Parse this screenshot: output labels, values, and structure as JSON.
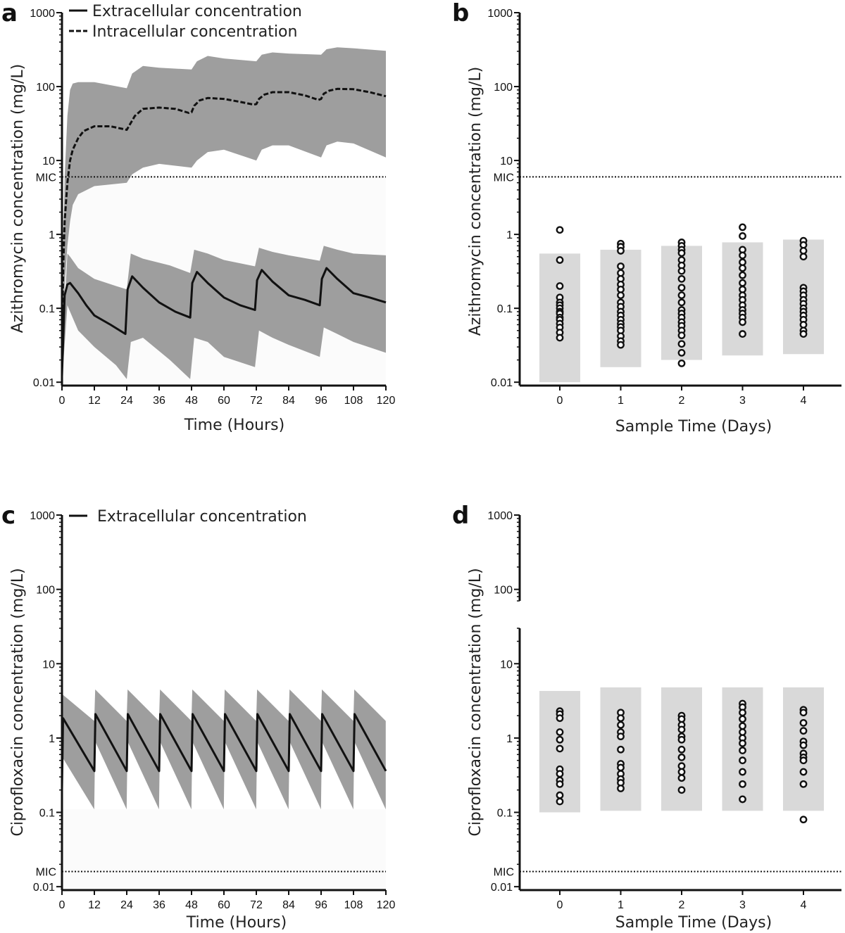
{
  "chart_data": [
    {
      "panel": "a",
      "type": "line",
      "xlabel": "Time (Hours)",
      "ylabel": "Azithromycin concentration (mg/L)",
      "xlim": [
        0,
        120
      ],
      "xticks": [
        0,
        12,
        24,
        36,
        48,
        60,
        72,
        84,
        96,
        108,
        120
      ],
      "ylim": [
        0.009,
        1000
      ],
      "yscale": "log",
      "yticks": [
        0.01,
        0.1,
        1,
        10,
        100,
        1000
      ],
      "ytick_labels": [
        "0.01",
        "0.1",
        "1",
        "10",
        "100",
        "1000"
      ],
      "mic": {
        "label": "MIC",
        "value": 6
      },
      "legend": {
        "position": "top-left",
        "entries": [
          "Extracellular concentration",
          "Intracellular concentration"
        ]
      },
      "series": [
        {
          "name": "Extracellular concentration",
          "style": "solid",
          "color": "#111111",
          "x": [
            0,
            1,
            2,
            3,
            6,
            9,
            12,
            18,
            23.5,
            24.3,
            26,
            30,
            36,
            42,
            47.5,
            48.3,
            50,
            54,
            60,
            66,
            71.5,
            72.3,
            74,
            78,
            84,
            90,
            95.5,
            96.3,
            98,
            102,
            108,
            114,
            120
          ],
          "y": [
            0.012,
            0.15,
            0.21,
            0.22,
            0.16,
            0.11,
            0.08,
            0.06,
            0.045,
            0.18,
            0.27,
            0.19,
            0.12,
            0.09,
            0.075,
            0.22,
            0.31,
            0.22,
            0.14,
            0.11,
            0.095,
            0.24,
            0.33,
            0.23,
            0.15,
            0.13,
            0.11,
            0.25,
            0.35,
            0.25,
            0.16,
            0.14,
            0.12
          ]
        },
        {
          "name": "Intracellular concentration",
          "style": "dashed",
          "color": "#111111",
          "x": [
            0,
            0.5,
            1,
            2,
            3,
            4,
            6,
            8,
            12,
            18,
            24,
            25,
            27,
            30,
            36,
            42,
            47,
            48,
            49,
            51,
            54,
            60,
            66,
            71,
            72,
            73,
            75,
            78,
            84,
            90,
            95,
            96,
            97,
            99,
            102,
            108,
            114,
            120
          ],
          "y": [
            0.04,
            0.4,
            1.5,
            5,
            10,
            14,
            20,
            25,
            29,
            29,
            26,
            30,
            40,
            50,
            52,
            50,
            44,
            45,
            55,
            65,
            70,
            68,
            62,
            57,
            58,
            68,
            78,
            84,
            84,
            76,
            66,
            68,
            80,
            88,
            93,
            92,
            84,
            74
          ]
        }
      ],
      "bands": [
        {
          "label": "extracellular range",
          "x": [
            0,
            2,
            3,
            6,
            12,
            20,
            24,
            25.5,
            30,
            40,
            47.5,
            49,
            54,
            60,
            71.5,
            73,
            78,
            84,
            95.5,
            97,
            102,
            108,
            120
          ],
          "upper": [
            0.02,
            0.55,
            0.5,
            0.35,
            0.25,
            0.2,
            0.18,
            0.55,
            0.47,
            0.38,
            0.3,
            0.62,
            0.55,
            0.45,
            0.37,
            0.66,
            0.58,
            0.52,
            0.44,
            0.7,
            0.62,
            0.55,
            0.52
          ],
          "lower": [
            0.01,
            0.11,
            0.09,
            0.05,
            0.03,
            0.017,
            0.011,
            0.035,
            0.04,
            0.02,
            0.011,
            0.04,
            0.035,
            0.022,
            0.016,
            0.05,
            0.04,
            0.032,
            0.022,
            0.055,
            0.045,
            0.035,
            0.025
          ]
        },
        {
          "label": "intracellular range",
          "x": [
            0,
            1,
            2,
            3,
            4,
            6,
            12,
            24,
            26,
            30,
            36,
            48,
            50,
            54,
            60,
            72,
            74,
            78,
            84,
            96,
            98,
            102,
            108,
            120
          ],
          "upper": [
            0.1,
            6,
            40,
            90,
            110,
            115,
            115,
            95,
            150,
            190,
            180,
            170,
            220,
            260,
            240,
            220,
            270,
            290,
            280,
            270,
            320,
            340,
            330,
            305
          ],
          "lower": [
            0.03,
            0.2,
            0.7,
            1.5,
            2.5,
            3.5,
            4.5,
            5,
            6.5,
            8,
            9,
            8,
            10,
            13,
            14,
            10,
            14,
            16,
            16,
            11,
            16,
            18,
            17,
            11
          ]
        }
      ]
    },
    {
      "panel": "b",
      "type": "scatter",
      "xlabel": "Sample Time (Days)",
      "ylabel": "Azithromycin concentration (mg/L)",
      "categories": [
        "0",
        "1",
        "2",
        "3",
        "4"
      ],
      "ylim": [
        0.009,
        1000
      ],
      "yscale": "log",
      "yticks": [
        0.01,
        0.1,
        1,
        10,
        100,
        1000
      ],
      "ytick_labels": [
        "0.01",
        "0.1",
        "1",
        "10",
        "100",
        "1000"
      ],
      "mic": {
        "label": "MIC",
        "value": 6
      },
      "ranges": [
        {
          "day": 0,
          "low": 0.01,
          "high": 0.55
        },
        {
          "day": 1,
          "low": 0.016,
          "high": 0.62
        },
        {
          "day": 2,
          "low": 0.02,
          "high": 0.7
        },
        {
          "day": 3,
          "low": 0.023,
          "high": 0.78
        },
        {
          "day": 4,
          "low": 0.024,
          "high": 0.85
        }
      ],
      "points": [
        {
          "day": 0,
          "values": [
            1.15,
            0.45,
            0.2,
            0.14,
            0.12,
            0.11,
            0.1,
            0.09,
            0.085,
            0.075,
            0.07,
            0.062,
            0.055,
            0.047,
            0.04
          ]
        },
        {
          "day": 1,
          "values": [
            0.75,
            0.68,
            0.6,
            0.37,
            0.3,
            0.25,
            0.21,
            0.18,
            0.15,
            0.12,
            0.105,
            0.09,
            0.08,
            0.07,
            0.062,
            0.056,
            0.05,
            0.042,
            0.036,
            0.032
          ]
        },
        {
          "day": 2,
          "values": [
            0.78,
            0.7,
            0.62,
            0.56,
            0.45,
            0.38,
            0.32,
            0.25,
            0.19,
            0.15,
            0.12,
            0.095,
            0.085,
            0.075,
            0.065,
            0.058,
            0.05,
            0.043,
            0.033,
            0.025,
            0.018
          ]
        },
        {
          "day": 3,
          "values": [
            1.25,
            0.95,
            0.62,
            0.52,
            0.42,
            0.35,
            0.28,
            0.22,
            0.18,
            0.15,
            0.13,
            0.11,
            0.095,
            0.085,
            0.075,
            0.065,
            0.045
          ]
        },
        {
          "day": 4,
          "values": [
            0.82,
            0.72,
            0.6,
            0.5,
            0.19,
            0.17,
            0.15,
            0.13,
            0.115,
            0.1,
            0.09,
            0.08,
            0.07,
            0.06,
            0.05,
            0.045
          ]
        }
      ]
    },
    {
      "panel": "c",
      "type": "line",
      "xlabel": "Time (Hours)",
      "ylabel": "Ciprofloxacin concentration (mg/L)",
      "xlim": [
        0,
        120
      ],
      "xticks": [
        0,
        12,
        24,
        36,
        48,
        60,
        72,
        84,
        96,
        108,
        120
      ],
      "ylim": [
        0.009,
        1000
      ],
      "yscale": "log",
      "yticks": [
        0.01,
        0.1,
        1,
        10,
        100,
        1000
      ],
      "ytick_labels": [
        "0.01",
        "0.1",
        "1",
        "10",
        "100",
        "1000"
      ],
      "mic": {
        "label": "MIC",
        "value": 0.016
      },
      "legend": {
        "position": "top-left",
        "entries": [
          "Extracellular concentration"
        ]
      },
      "series": [
        {
          "name": "Extracellular concentration",
          "style": "solid",
          "color": "#111111",
          "dosing_interval": 12,
          "peak": 2.1,
          "trough": 0.36,
          "first_peak": 1.85
        }
      ],
      "bands": [
        {
          "label": "extracellular range",
          "dosing_interval": 12,
          "upper_peak": 4.5,
          "upper_trough": 1.7,
          "lower_peak": 0.9,
          "lower_trough": 0.11
        }
      ]
    },
    {
      "panel": "d",
      "type": "scatter",
      "xlabel": "Sample Time (Days)",
      "ylabel": "Ciprofloxacin concentration (mg/L)",
      "categories": [
        "0",
        "1",
        "2",
        "3",
        "4"
      ],
      "ylim": [
        0.009,
        1000
      ],
      "yscale": "log",
      "yticks": [
        0.01,
        0.1,
        1,
        10,
        100,
        1000
      ],
      "ytick_labels": [
        "0.01",
        "0.1",
        "1",
        "10",
        "100",
        "1000"
      ],
      "axis_break": [
        30,
        70
      ],
      "mic": {
        "label": "MIC",
        "value": 0.016
      },
      "ranges": [
        {
          "day": 0,
          "low": 0.1,
          "high": 4.3
        },
        {
          "day": 1,
          "low": 0.105,
          "high": 4.8
        },
        {
          "day": 2,
          "low": 0.105,
          "high": 4.8
        },
        {
          "day": 3,
          "low": 0.105,
          "high": 4.8
        },
        {
          "day": 4,
          "low": 0.105,
          "high": 4.8
        }
      ],
      "points": [
        {
          "day": 0,
          "values": [
            2.3,
            2.1,
            1.85,
            1.2,
            0.95,
            0.72,
            0.38,
            0.33,
            0.27,
            0.24,
            0.17,
            0.14
          ]
        },
        {
          "day": 1,
          "values": [
            2.2,
            1.85,
            1.5,
            1.2,
            1.05,
            0.7,
            0.45,
            0.4,
            0.33,
            0.28,
            0.25,
            0.21
          ]
        },
        {
          "day": 2,
          "values": [
            2.0,
            1.8,
            1.5,
            1.3,
            1.05,
            0.95,
            0.7,
            0.55,
            0.42,
            0.35,
            0.29,
            0.2
          ]
        },
        {
          "day": 3,
          "values": [
            2.9,
            2.6,
            2.2,
            1.8,
            1.45,
            1.2,
            1.0,
            0.85,
            0.68,
            0.5,
            0.35,
            0.24,
            0.15
          ]
        },
        {
          "day": 4,
          "values": [
            2.4,
            2.2,
            1.6,
            1.25,
            0.9,
            0.8,
            0.62,
            0.55,
            0.5,
            0.35,
            0.24,
            0.08
          ]
        }
      ]
    }
  ]
}
